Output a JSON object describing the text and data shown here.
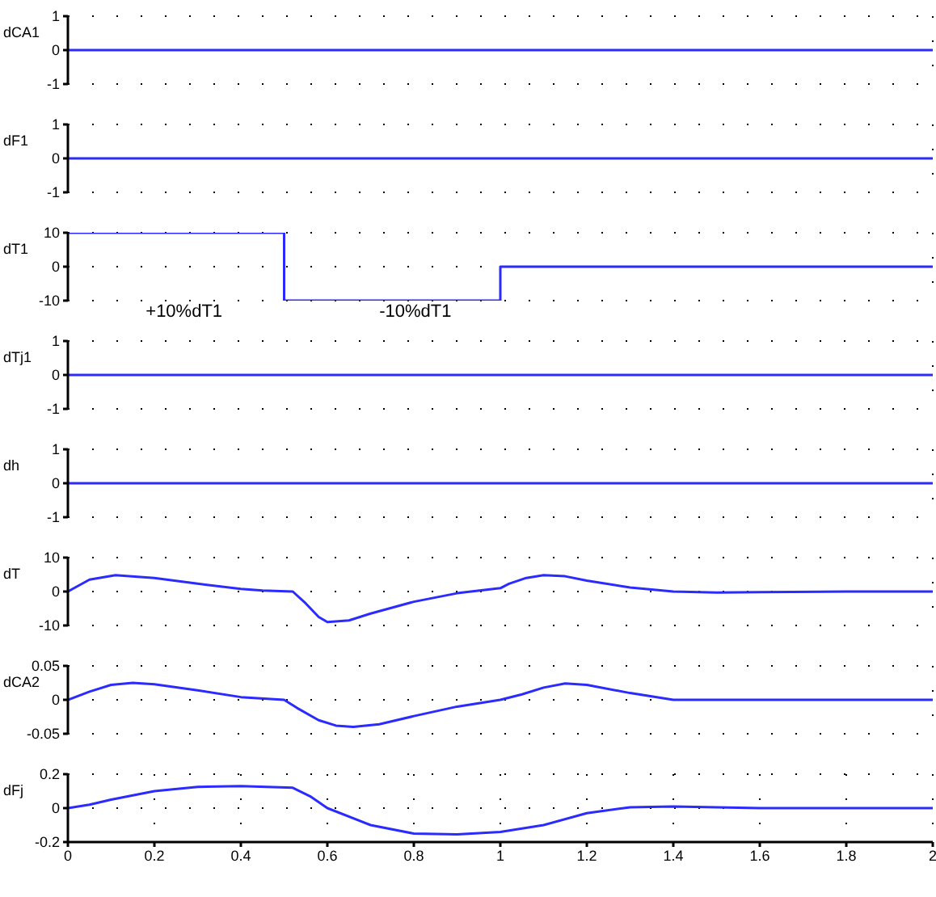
{
  "chart_data": [
    {
      "type": "line",
      "ylabel": "dCA1",
      "x": [
        0,
        2
      ],
      "series": [
        {
          "color": "#2b2bff",
          "values": [
            0,
            0
          ]
        }
      ],
      "xlim": [
        0,
        2
      ],
      "xticks": [
        0,
        0.2,
        0.4,
        0.6,
        0.8,
        1,
        1.2,
        1.4,
        1.6,
        1.8,
        2
      ],
      "ylim": [
        -1,
        1
      ],
      "yticks": [
        -1,
        0,
        1
      ],
      "grid": true,
      "tick_labels": "y",
      "legend": false,
      "marker": "none",
      "line_style": "solid"
    },
    {
      "type": "line",
      "ylabel": "dF1",
      "x": [
        0,
        2
      ],
      "series": [
        {
          "color": "#2b2bff",
          "values": [
            0,
            0
          ]
        }
      ],
      "xlim": [
        0,
        2
      ],
      "xticks": [
        0,
        0.2,
        0.4,
        0.6,
        0.8,
        1,
        1.2,
        1.4,
        1.6,
        1.8,
        2
      ],
      "ylim": [
        -1,
        1
      ],
      "yticks": [
        -1,
        0,
        1
      ],
      "grid": true,
      "tick_labels": "y",
      "legend": false,
      "marker": "none",
      "line_style": "solid"
    },
    {
      "type": "line",
      "ylabel": "dT1",
      "x": [
        0,
        0.5,
        0.5,
        1,
        1,
        2
      ],
      "series": [
        {
          "color": "#2b2bff",
          "values": [
            10,
            10,
            -10,
            -10,
            0,
            0
          ]
        }
      ],
      "xlim": [
        0,
        2
      ],
      "xticks": [
        0,
        0.2,
        0.4,
        0.6,
        0.8,
        1,
        1.2,
        1.4,
        1.6,
        1.8,
        2
      ],
      "ylim": [
        -10,
        10
      ],
      "yticks": [
        -10,
        0,
        10
      ],
      "grid": true,
      "tick_labels": "y",
      "legend": false,
      "marker": "none",
      "line_style": "solid",
      "annotations": [
        "+10%dT1",
        "-10%dT1"
      ]
    },
    {
      "type": "line",
      "ylabel": "dTj1",
      "x": [
        0,
        2
      ],
      "series": [
        {
          "color": "#2b2bff",
          "values": [
            0,
            0
          ]
        }
      ],
      "xlim": [
        0,
        2
      ],
      "xticks": [
        0,
        0.2,
        0.4,
        0.6,
        0.8,
        1,
        1.2,
        1.4,
        1.6,
        1.8,
        2
      ],
      "ylim": [
        -1,
        1
      ],
      "yticks": [
        -1,
        0,
        1
      ],
      "grid": true,
      "tick_labels": "y",
      "legend": false,
      "marker": "none",
      "line_style": "solid"
    },
    {
      "type": "line",
      "ylabel": "dh",
      "x": [
        0,
        2
      ],
      "series": [
        {
          "color": "#2b2bff",
          "values": [
            0,
            0
          ]
        }
      ],
      "xlim": [
        0,
        2
      ],
      "xticks": [
        0,
        0.2,
        0.4,
        0.6,
        0.8,
        1,
        1.2,
        1.4,
        1.6,
        1.8,
        2
      ],
      "ylim": [
        -1,
        1
      ],
      "yticks": [
        -1,
        0,
        1
      ],
      "grid": true,
      "tick_labels": "y",
      "legend": false,
      "marker": "none",
      "line_style": "solid"
    },
    {
      "type": "line",
      "ylabel": "dT",
      "x": [
        0,
        0.05,
        0.11,
        0.2,
        0.3,
        0.4,
        0.45,
        0.52,
        0.55,
        0.58,
        0.6,
        0.65,
        0.7,
        0.8,
        0.9,
        1,
        1.02,
        1.06,
        1.1,
        1.15,
        1.2,
        1.3,
        1.4,
        1.5,
        1.6,
        1.8,
        2
      ],
      "series": [
        {
          "color": "#2b2bff",
          "values": [
            0,
            3.5,
            4.8,
            4,
            2.3,
            0.8,
            0.3,
            0,
            -3.5,
            -7.5,
            -9,
            -8.5,
            -6.5,
            -3,
            -0.5,
            1,
            2.3,
            4,
            4.8,
            4.5,
            3.2,
            1.2,
            0,
            -0.3,
            -0.2,
            0,
            0
          ]
        }
      ],
      "xlim": [
        0,
        2
      ],
      "xticks": [
        0,
        0.2,
        0.4,
        0.6,
        0.8,
        1,
        1.2,
        1.4,
        1.6,
        1.8,
        2
      ],
      "ylim": [
        -10,
        10
      ],
      "yticks": [
        -10,
        0,
        10
      ],
      "grid": true,
      "tick_labels": "y",
      "legend": false,
      "marker": "none",
      "line_style": "solid"
    },
    {
      "type": "line",
      "ylabel": "dCA2",
      "x": [
        0,
        0.05,
        0.1,
        0.15,
        0.2,
        0.3,
        0.4,
        0.5,
        0.53,
        0.58,
        0.62,
        0.66,
        0.72,
        0.8,
        0.9,
        1,
        1.05,
        1.1,
        1.15,
        1.2,
        1.3,
        1.4,
        1.6,
        2
      ],
      "series": [
        {
          "color": "#2b2bff",
          "values": [
            0,
            0.012,
            0.022,
            0.025,
            0.023,
            0.014,
            0.004,
            0,
            -0.012,
            -0.03,
            -0.038,
            -0.04,
            -0.036,
            -0.024,
            -0.01,
            0,
            0.008,
            0.018,
            0.024,
            0.022,
            0.01,
            0,
            0,
            0
          ]
        }
      ],
      "xlim": [
        0,
        2
      ],
      "xticks": [
        0,
        0.2,
        0.4,
        0.6,
        0.8,
        1,
        1.2,
        1.4,
        1.6,
        1.8,
        2
      ],
      "ylim": [
        -0.05,
        0.05
      ],
      "yticks": [
        -0.05,
        0,
        0.05
      ],
      "grid": true,
      "tick_labels": "y",
      "legend": false,
      "marker": "none",
      "line_style": "solid"
    },
    {
      "type": "line",
      "ylabel": "dFj",
      "x": [
        0,
        0.05,
        0.1,
        0.2,
        0.3,
        0.4,
        0.52,
        0.56,
        0.6,
        0.7,
        0.8,
        0.9,
        1,
        1.1,
        1.2,
        1.3,
        1.4,
        1.6,
        1.8,
        2
      ],
      "series": [
        {
          "color": "#2b2bff",
          "values": [
            0,
            0.02,
            0.05,
            0.1,
            0.125,
            0.13,
            0.12,
            0.07,
            0,
            -0.1,
            -0.15,
            -0.155,
            -0.14,
            -0.1,
            -0.03,
            0.005,
            0.01,
            0,
            0,
            0
          ]
        }
      ],
      "xlim": [
        0,
        2
      ],
      "xticks": [
        0,
        0.2,
        0.4,
        0.6,
        0.8,
        1,
        1.2,
        1.4,
        1.6,
        1.8,
        2
      ],
      "ylim": [
        -0.2,
        0.2
      ],
      "yticks": [
        -0.2,
        0,
        0.2
      ],
      "grid": true,
      "legend": false,
      "marker": "none",
      "line_style": "solid"
    }
  ]
}
